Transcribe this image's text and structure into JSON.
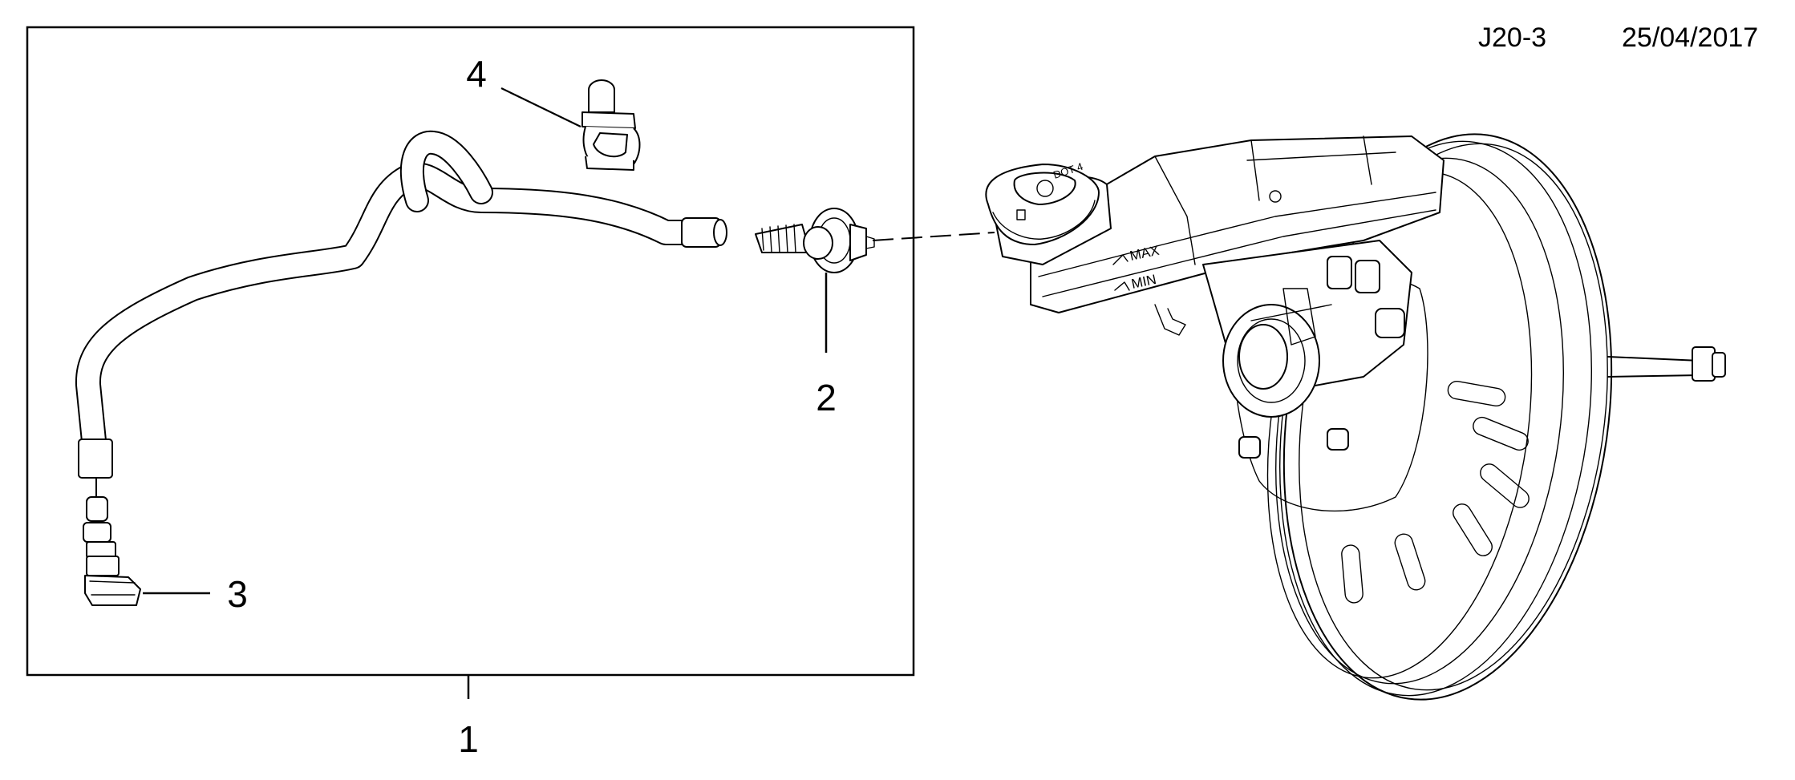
{
  "header": {
    "code": "J20-3",
    "date": "25/04/2017"
  },
  "callouts": [
    {
      "id": "callout-1",
      "label": "1"
    },
    {
      "id": "callout-2",
      "label": "2"
    },
    {
      "id": "callout-3",
      "label": "3"
    },
    {
      "id": "callout-4",
      "label": "4"
    }
  ],
  "reservoir": {
    "max_label": "MAX",
    "min_label": "MIN",
    "cap_label": "DOT 4"
  },
  "colors": {
    "line": "#000000",
    "background": "#ffffff"
  },
  "icons": [
    "clutch-hose-icon",
    "connector-icon",
    "clip-icon",
    "brake-booster-icon",
    "master-cylinder-icon",
    "reservoir-cap-icon"
  ]
}
